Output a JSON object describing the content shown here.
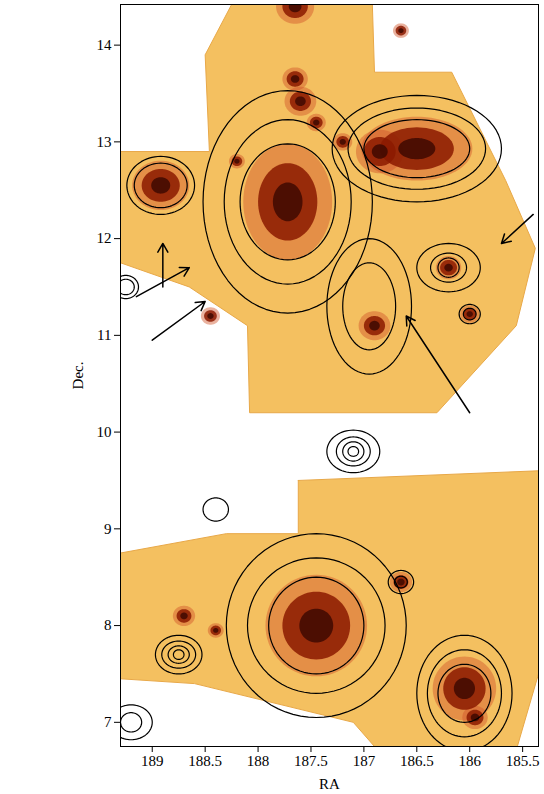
{
  "chart_data": {
    "type": "map",
    "x_label": "RA",
    "y_label": "Dec.",
    "xlim": [
      189.3,
      185.35
    ],
    "xticks": [
      189,
      188.5,
      188,
      187.5,
      187,
      186.5,
      186,
      185.5
    ],
    "ylim": [
      6.75,
      14.42
    ],
    "yticks": [
      7,
      8,
      9,
      10,
      11,
      12,
      13,
      14
    ],
    "footprints": [
      {
        "color": "#f4c060",
        "ra": [
          188.25,
          186.92,
          186.9,
          186.17,
          185.66,
          185.38,
          185.56,
          186.31,
          188.08,
          188.1,
          188.65,
          189.3,
          189.3,
          188.46,
          188.5
        ],
        "dec": [
          14.42,
          14.42,
          13.72,
          13.72,
          12.6,
          11.9,
          11.1,
          10.2,
          10.2,
          11.1,
          11.5,
          11.75,
          12.9,
          12.9,
          13.9
        ]
      },
      {
        "color": "#f4c060",
        "ra": [
          187.62,
          185.35,
          185.35,
          185.55,
          186.9,
          187.1,
          188.6,
          189.3,
          189.3,
          188.3,
          187.62
        ],
        "dec": [
          9.5,
          9.6,
          7.5,
          6.75,
          6.75,
          7.0,
          7.4,
          7.45,
          8.75,
          8.95,
          8.95
        ]
      }
    ],
    "galaxies": {
      "color": "#8b1a00",
      "ra": [
        187.72,
        186.5,
        186.85,
        188.92,
        187.65,
        187.65,
        187.6,
        187.45,
        187.2,
        186.9,
        186.2,
        186.0,
        188.2,
        188.45,
        186.65,
        187.45,
        186.05,
        185.95,
        186.65,
        188.7,
        188.4
      ],
      "dec": [
        12.38,
        12.93,
        12.9,
        12.55,
        14.4,
        13.65,
        13.42,
        13.2,
        13.0,
        11.1,
        11.7,
        11.22,
        12.8,
        11.2,
        14.15,
        8.0,
        7.35,
        7.05,
        8.45,
        8.1,
        7.95
      ],
      "a": [
        0.28,
        0.35,
        0.15,
        0.18,
        0.12,
        0.08,
        0.1,
        0.06,
        0.06,
        0.1,
        0.08,
        0.06,
        0.05,
        0.06,
        0.05,
        0.32,
        0.2,
        0.08,
        0.07,
        0.07,
        0.05
      ],
      "b": [
        0.4,
        0.22,
        0.15,
        0.17,
        0.12,
        0.08,
        0.1,
        0.06,
        0.06,
        0.1,
        0.08,
        0.06,
        0.05,
        0.06,
        0.05,
        0.35,
        0.22,
        0.08,
        0.07,
        0.07,
        0.05
      ]
    },
    "contours": {
      "color": "#000000",
      "items": [
        {
          "ra": 187.72,
          "dec": 12.38,
          "a": [
            0.45,
            0.6,
            0.8
          ],
          "b": [
            0.6,
            0.85,
            1.15
          ]
        },
        {
          "ra": 186.5,
          "dec": 12.93,
          "a": [
            0.5,
            0.65,
            0.8
          ],
          "b": [
            0.3,
            0.42,
            0.55
          ]
        },
        {
          "ra": 188.92,
          "dec": 12.55,
          "a": [
            0.25,
            0.32
          ],
          "b": [
            0.23,
            0.3
          ]
        },
        {
          "ra": 186.2,
          "dec": 11.7,
          "a": [
            0.1,
            0.17,
            0.3
          ],
          "b": [
            0.1,
            0.15,
            0.25
          ]
        },
        {
          "ra": 186.0,
          "dec": 11.22,
          "a": [
            0.06,
            0.1
          ],
          "b": [
            0.06,
            0.1
          ]
        },
        {
          "ra": 186.95,
          "dec": 11.3,
          "a": [
            0.25,
            0.4
          ],
          "b": [
            0.45,
            0.7
          ]
        },
        {
          "ra": 187.45,
          "dec": 8.0,
          "a": [
            0.45,
            0.65,
            0.85
          ],
          "b": [
            0.5,
            0.7,
            0.95
          ]
        },
        {
          "ra": 186.05,
          "dec": 7.3,
          "a": [
            0.25,
            0.35,
            0.45
          ],
          "b": [
            0.3,
            0.45,
            0.6
          ]
        },
        {
          "ra": 186.65,
          "dec": 8.45,
          "a": [
            0.06,
            0.12
          ],
          "b": [
            0.06,
            0.12
          ]
        },
        {
          "ra": 187.1,
          "dec": 9.8,
          "a": [
            0.05,
            0.1,
            0.16,
            0.25
          ],
          "b": [
            0.05,
            0.1,
            0.15,
            0.22
          ]
        },
        {
          "ra": 188.75,
          "dec": 7.7,
          "a": [
            0.05,
            0.1,
            0.16,
            0.22
          ],
          "b": [
            0.05,
            0.09,
            0.14,
            0.2
          ]
        },
        {
          "ra": 189.2,
          "dec": 7.0,
          "a": [
            0.1,
            0.2
          ],
          "b": [
            0.1,
            0.18
          ]
        },
        {
          "ra": 189.25,
          "dec": 11.5,
          "a": [
            0.08,
            0.12
          ],
          "b": [
            0.08,
            0.12
          ]
        },
        {
          "ra": 188.4,
          "dec": 9.2,
          "a": [
            0.12
          ],
          "b": [
            0.12
          ]
        }
      ]
    },
    "arrows": {
      "color": "#000000",
      "ra": [
        188.9,
        189.15,
        189.0,
        186.0,
        185.4
      ],
      "dec": [
        11.5,
        11.4,
        10.95,
        10.2,
        12.25
      ],
      "ra_end": [
        188.9,
        188.65,
        188.5,
        186.6,
        185.7
      ],
      "dec_end": [
        11.95,
        11.7,
        11.35,
        11.2,
        11.95
      ]
    }
  }
}
